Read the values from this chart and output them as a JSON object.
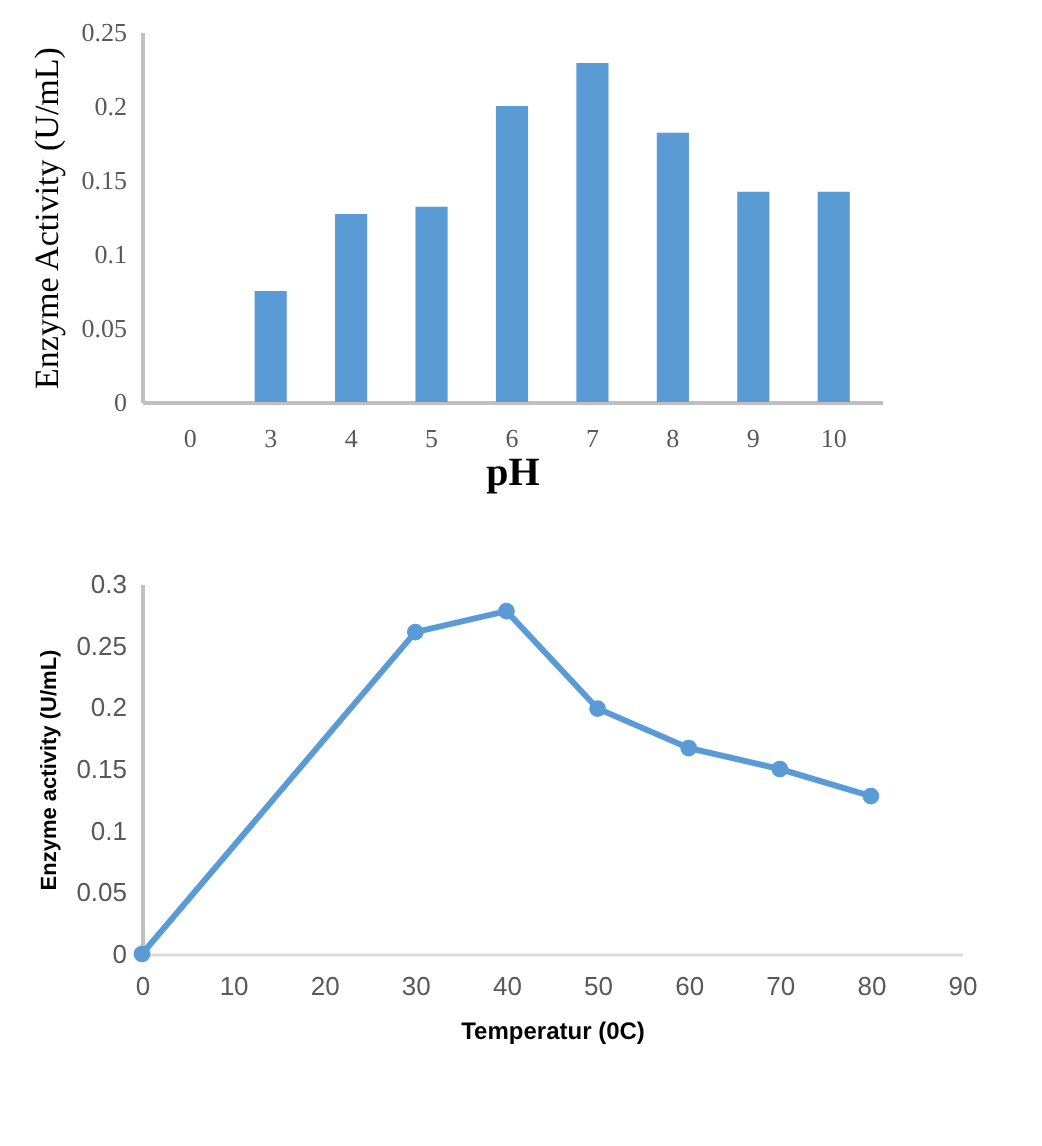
{
  "chart_data": [
    {
      "type": "bar",
      "xlabel": "pH",
      "ylabel": "Enzyme Activity (U/mL)",
      "categories": [
        "0",
        "3",
        "4",
        "5",
        "6",
        "7",
        "8",
        "9",
        "10"
      ],
      "values": [
        0,
        0.075,
        0.127,
        0.132,
        0.2,
        0.229,
        0.182,
        0.142,
        0.142
      ],
      "color": "#5b9bd5",
      "ylim": [
        0,
        0.25
      ],
      "yticks": [
        0,
        0.05,
        0.1,
        0.15,
        0.2,
        0.25
      ],
      "grid": false
    },
    {
      "type": "line",
      "xlabel": "Temperatur (0C)",
      "ylabel": "Enzyme activity (U/mL)",
      "x": [
        0,
        30,
        40,
        50,
        60,
        70,
        80
      ],
      "values": [
        0,
        0.261,
        0.278,
        0.199,
        0.167,
        0.15,
        0.128
      ],
      "color": "#5b9bd5",
      "xlim": [
        0,
        90
      ],
      "xticks": [
        0,
        10,
        20,
        30,
        40,
        50,
        60,
        70,
        80,
        90
      ],
      "ylim": [
        0,
        0.3
      ],
      "yticks": [
        0,
        0.05,
        0.1,
        0.15,
        0.2,
        0.25,
        0.3
      ],
      "grid": false,
      "marker": "circle"
    }
  ]
}
